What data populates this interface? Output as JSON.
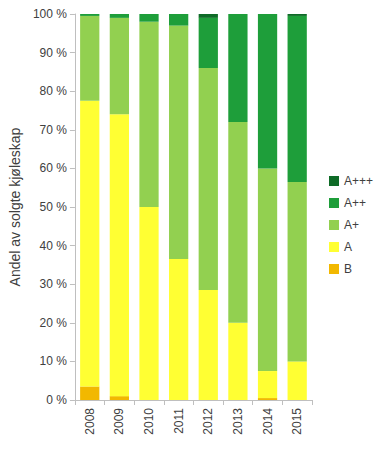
{
  "chart_data": {
    "type": "bar",
    "stacked": true,
    "grid": false,
    "legend": "right",
    "y_label": "Andel av solgte kjøleskap",
    "categories": [
      "2008",
      "2009",
      "2010",
      "2011",
      "2012",
      "2013",
      "2014",
      "2015"
    ],
    "ylim": [
      0,
      100
    ],
    "yticks": [
      {
        "value": 0,
        "label": "0 %"
      },
      {
        "value": 10,
        "label": "10 %"
      },
      {
        "value": 20,
        "label": "20 %"
      },
      {
        "value": 30,
        "label": "30 %"
      },
      {
        "value": 40,
        "label": "40 %"
      },
      {
        "value": 50,
        "label": "50 %"
      },
      {
        "value": 60,
        "label": "60 %"
      },
      {
        "value": 70,
        "label": "70 %"
      },
      {
        "value": 80,
        "label": "80 %"
      },
      {
        "value": 90,
        "label": "90 %"
      },
      {
        "value": 100,
        "label": "100 %"
      }
    ],
    "series": [
      {
        "name": "B",
        "color": "#f2b800",
        "values": [
          3.5,
          1,
          0,
          0,
          0,
          0,
          0.5,
          0
        ]
      },
      {
        "name": "A",
        "color": "#ffff33",
        "values": [
          74,
          73,
          50,
          36.5,
          28.5,
          20,
          7,
          10
        ]
      },
      {
        "name": "A+",
        "color": "#92d050",
        "values": [
          22,
          25,
          48,
          60.5,
          57.5,
          52,
          52.5,
          46.5
        ]
      },
      {
        "name": "A++",
        "color": "#1e9e3a",
        "values": [
          0.5,
          1,
          2,
          3,
          13,
          28,
          40,
          43
        ]
      },
      {
        "name": "A+++",
        "color": "#0e6b27",
        "values": [
          0,
          0,
          0,
          0,
          1,
          0,
          0,
          0.5
        ]
      }
    ]
  }
}
